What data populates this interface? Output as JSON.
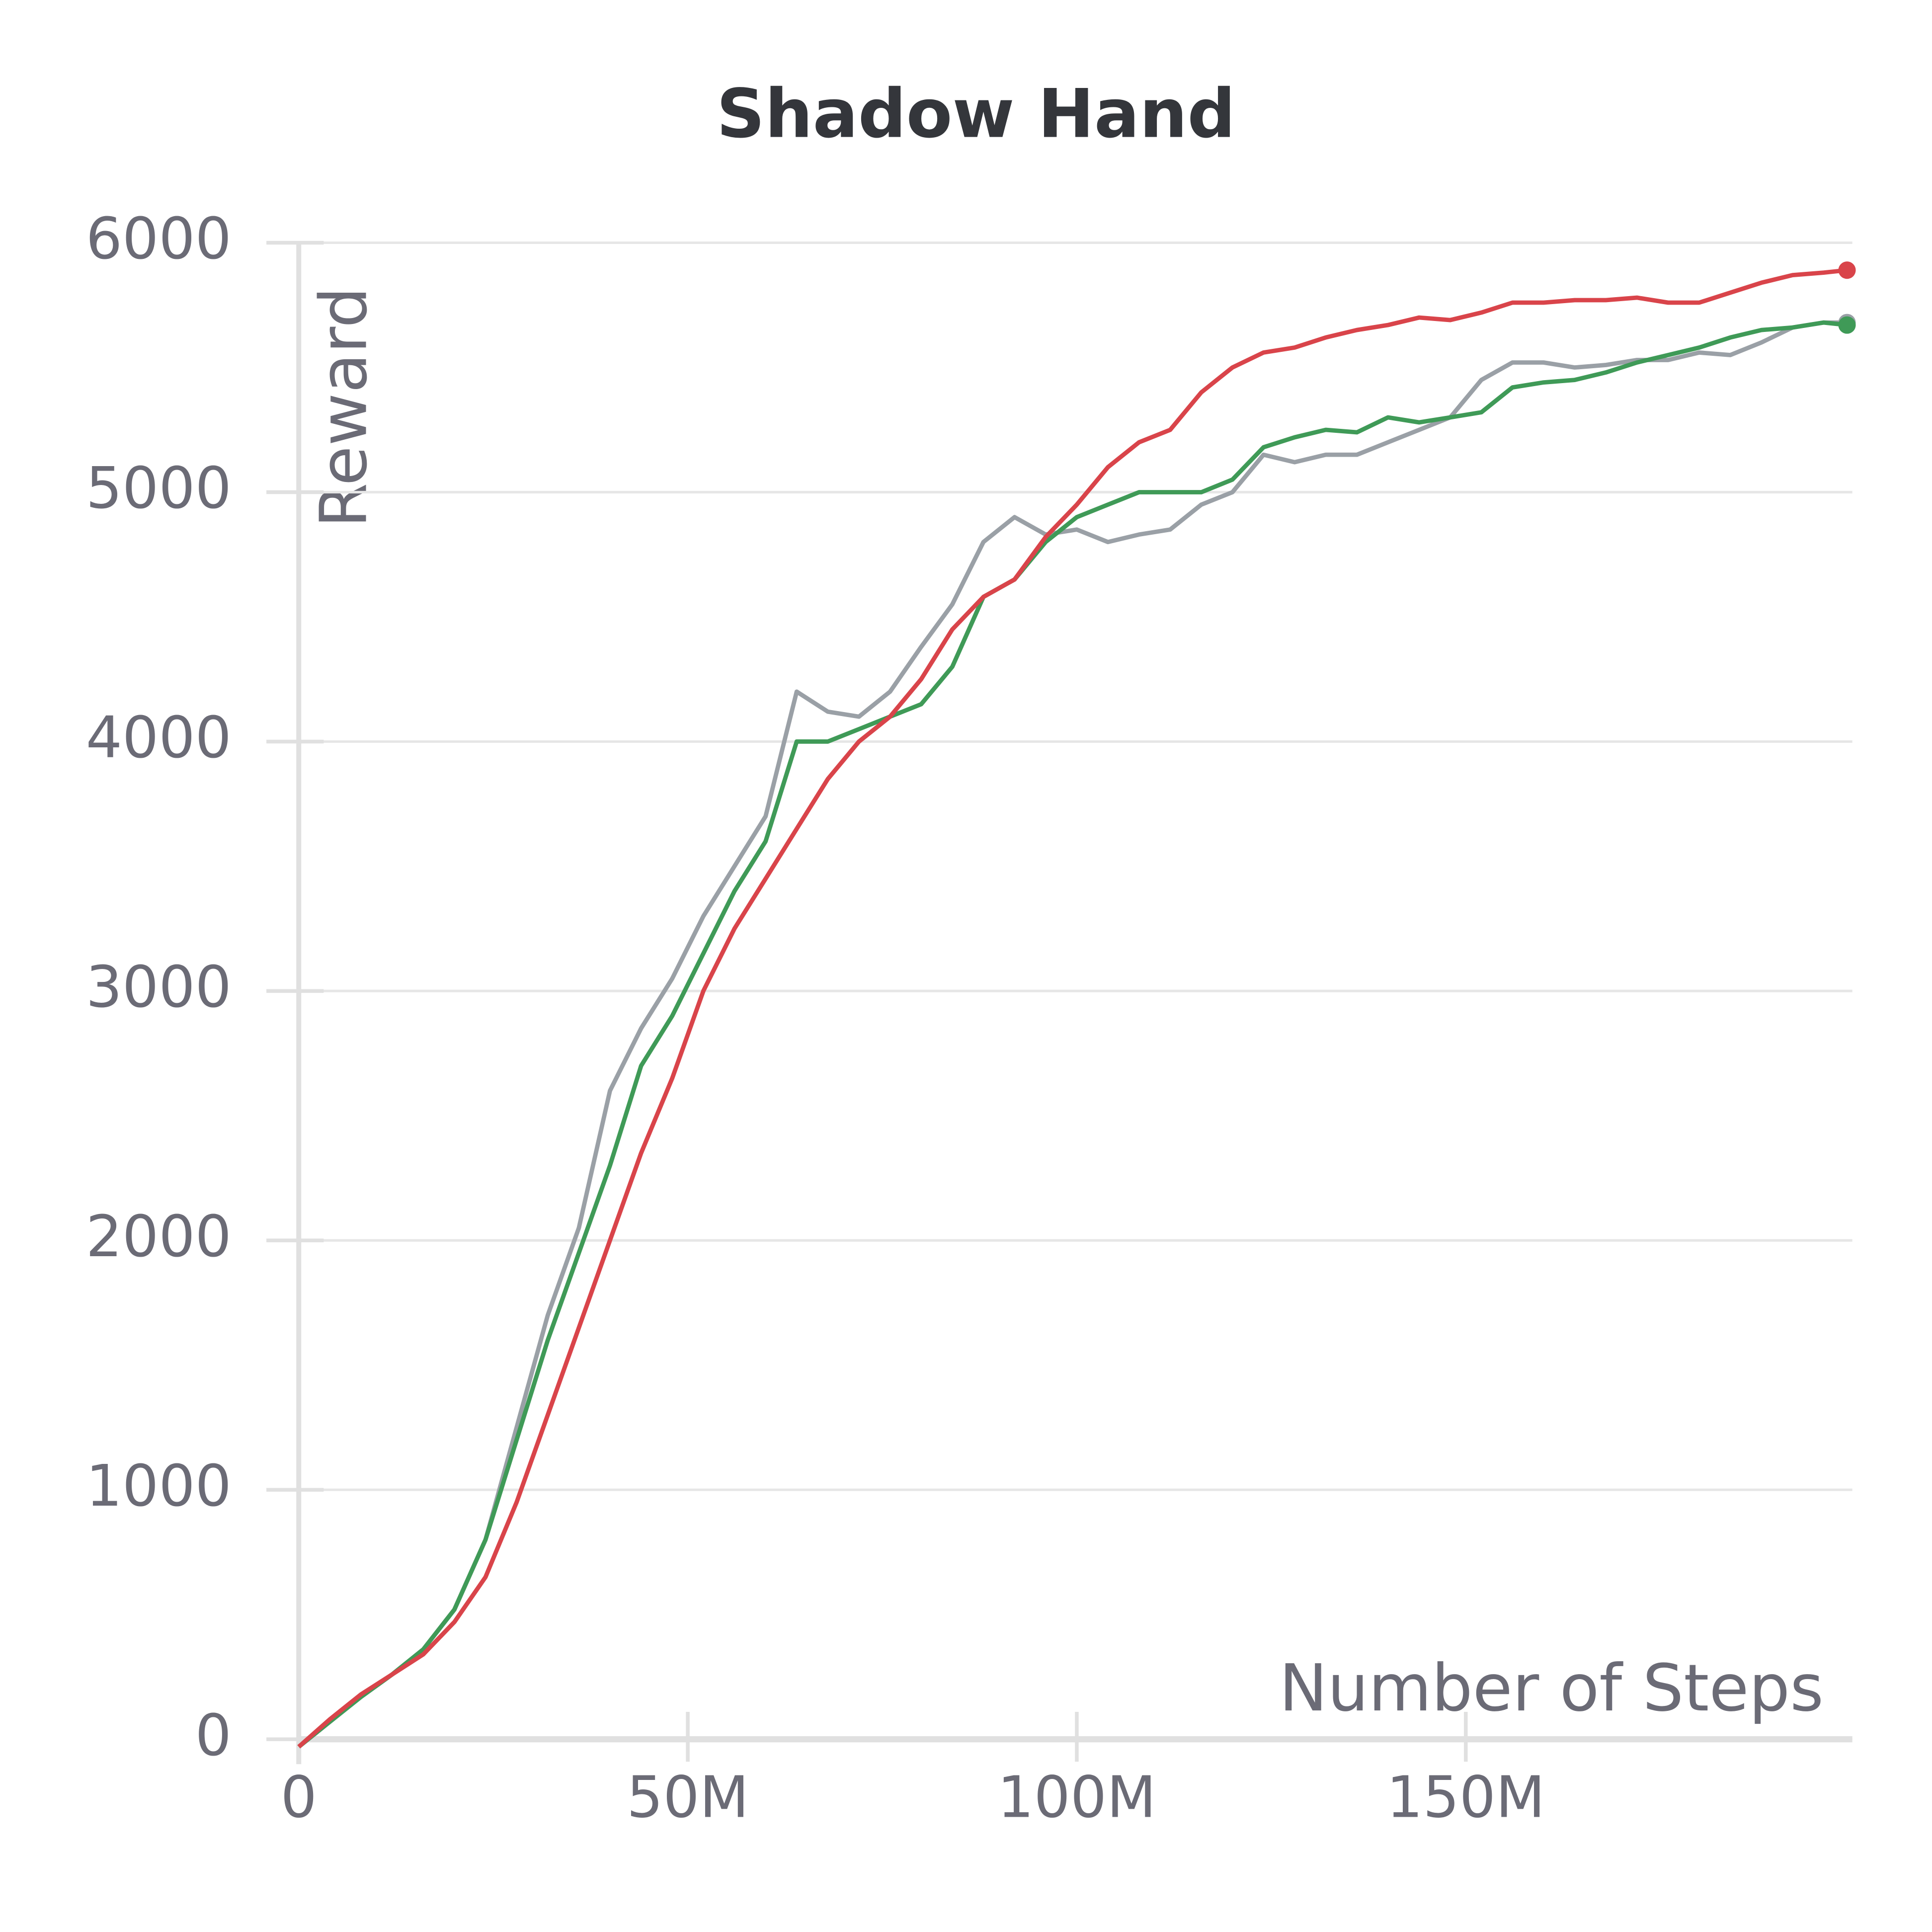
{
  "chart_data": {
    "type": "line",
    "title": "Shadow Hand",
    "y_label": "Reward",
    "x_label": "Number of Steps",
    "x": [
      0,
      4000000,
      8000000,
      12000000,
      16000000,
      20000000,
      24000000,
      28000000,
      32000000,
      36000000,
      40000000,
      44000000,
      48000000,
      52000000,
      56000000,
      60000000,
      64000000,
      68000000,
      72000000,
      76000000,
      80000000,
      84000000,
      88000000,
      92000000,
      96000000,
      100000000,
      104000000,
      108000000,
      112000000,
      116000000,
      120000000,
      124000000,
      128000000,
      132000000,
      136000000,
      140000000,
      144000000,
      148000000,
      152000000,
      156000000,
      160000000,
      164000000,
      168000000,
      172000000,
      176000000,
      180000000,
      184000000,
      188000000,
      192000000,
      196000000,
      199000000
    ],
    "series": [
      {
        "color": "#9aa0a6",
        "values": [
          -30,
          70,
          170,
          260,
          360,
          520,
          800,
          1250,
          1700,
          2050,
          2600,
          2850,
          3050,
          3300,
          3500,
          3700,
          4200,
          4120,
          4100,
          4200,
          4380,
          4550,
          4800,
          4900,
          4830,
          4850,
          4800,
          4830,
          4850,
          4950,
          5000,
          5150,
          5120,
          5150,
          5150,
          5200,
          5250,
          5300,
          5450,
          5520,
          5520,
          5500,
          5510,
          5530,
          5530,
          5560,
          5550,
          5600,
          5660,
          5680,
          5680
        ]
      },
      {
        "color": "#3f9a57",
        "values": [
          -30,
          70,
          170,
          260,
          360,
          520,
          800,
          1200,
          1600,
          1950,
          2300,
          2700,
          2900,
          3150,
          3400,
          3600,
          4000,
          4000,
          4050,
          4100,
          4150,
          4300,
          4580,
          4650,
          4800,
          4900,
          4950,
          5000,
          5000,
          5000,
          5050,
          5180,
          5220,
          5250,
          5240,
          5300,
          5280,
          5300,
          5320,
          5420,
          5440,
          5450,
          5480,
          5520,
          5550,
          5580,
          5620,
          5650,
          5660,
          5680,
          5670
        ]
      },
      {
        "color": "#d9444a",
        "values": [
          -30,
          80,
          180,
          260,
          340,
          470,
          650,
          950,
          1300,
          1650,
          2000,
          2350,
          2650,
          3000,
          3250,
          3450,
          3650,
          3850,
          4000,
          4100,
          4250,
          4450,
          4580,
          4650,
          4820,
          4950,
          5100,
          5200,
          5250,
          5400,
          5500,
          5560,
          5580,
          5620,
          5650,
          5670,
          5700,
          5690,
          5720,
          5760,
          5760,
          5770,
          5770,
          5780,
          5760,
          5760,
          5800,
          5840,
          5870,
          5880,
          5890
        ]
      }
    ],
    "xlim": [
      0,
      200000000
    ],
    "ylim": [
      -100,
      6000
    ],
    "xticks": [
      0,
      {
        "value": 50000000,
        "label": "50M"
      },
      {
        "value": 100000000,
        "label": "100M"
      },
      {
        "value": 150000000,
        "label": "150M"
      }
    ],
    "yticks": [
      0,
      1000,
      2000,
      3000,
      4000,
      5000,
      6000
    ],
    "grid": true
  }
}
